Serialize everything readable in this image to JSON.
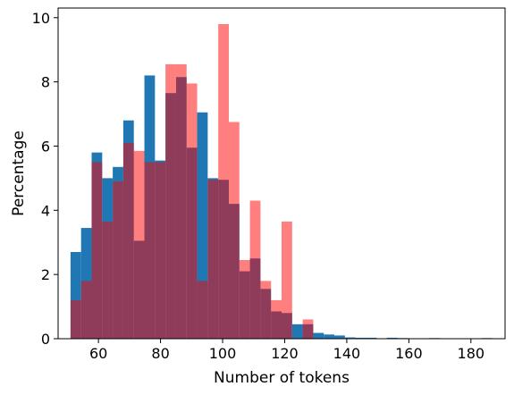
{
  "chart_data": {
    "type": "bar",
    "xlabel": "Number of tokens",
    "ylabel": "Percentage",
    "xlim": [
      47,
      191
    ],
    "ylim": [
      0,
      10.3
    ],
    "xticks": [
      60,
      80,
      100,
      120,
      140,
      160,
      180
    ],
    "yticks": [
      0,
      2,
      4,
      6,
      8,
      10
    ],
    "grid": false,
    "legend": "none",
    "overlap_color": "#8b3356",
    "series": [
      {
        "color": "#1f77b4",
        "alpha": 1.0,
        "bins": [
          {
            "x0": 51.0,
            "x1": 54.4,
            "value": 2.7
          },
          {
            "x0": 54.4,
            "x1": 57.8,
            "value": 3.45
          },
          {
            "x0": 57.8,
            "x1": 61.2,
            "value": 5.8
          },
          {
            "x0": 61.2,
            "x1": 64.6,
            "value": 5.0
          },
          {
            "x0": 64.6,
            "x1": 68.0,
            "value": 5.35
          },
          {
            "x0": 68.0,
            "x1": 71.4,
            "value": 6.8
          },
          {
            "x0": 71.4,
            "x1": 74.8,
            "value": 3.05
          },
          {
            "x0": 74.8,
            "x1": 78.2,
            "value": 8.2
          },
          {
            "x0": 78.2,
            "x1": 81.6,
            "value": 5.55
          },
          {
            "x0": 81.6,
            "x1": 85.0,
            "value": 7.65
          },
          {
            "x0": 85.0,
            "x1": 88.4,
            "value": 8.15
          },
          {
            "x0": 88.4,
            "x1": 91.8,
            "value": 5.95
          },
          {
            "x0": 91.8,
            "x1": 95.2,
            "value": 7.05
          },
          {
            "x0": 95.2,
            "x1": 98.6,
            "value": 5.0
          },
          {
            "x0": 98.6,
            "x1": 102.0,
            "value": 4.95
          },
          {
            "x0": 102.0,
            "x1": 105.4,
            "value": 4.2
          },
          {
            "x0": 105.4,
            "x1": 108.8,
            "value": 2.1
          },
          {
            "x0": 108.8,
            "x1": 112.2,
            "value": 2.5
          },
          {
            "x0": 112.2,
            "x1": 115.6,
            "value": 1.55
          },
          {
            "x0": 115.6,
            "x1": 119.0,
            "value": 0.85
          },
          {
            "x0": 119.0,
            "x1": 122.4,
            "value": 0.8
          },
          {
            "x0": 122.4,
            "x1": 125.8,
            "value": 0.45
          },
          {
            "x0": 125.8,
            "x1": 129.2,
            "value": 0.45
          },
          {
            "x0": 129.2,
            "x1": 132.6,
            "value": 0.18
          },
          {
            "x0": 132.6,
            "x1": 136.0,
            "value": 0.13
          },
          {
            "x0": 136.0,
            "x1": 139.4,
            "value": 0.1
          },
          {
            "x0": 139.4,
            "x1": 142.8,
            "value": 0.04
          },
          {
            "x0": 142.8,
            "x1": 146.2,
            "value": 0.03
          },
          {
            "x0": 146.2,
            "x1": 149.6,
            "value": 0.03
          },
          {
            "x0": 152.9,
            "x1": 156.3,
            "value": 0.03
          },
          {
            "x0": 156.3,
            "x1": 159.7,
            "value": 0.02
          },
          {
            "x0": 166.5,
            "x1": 169.9,
            "value": 0.02
          },
          {
            "x0": 183.5,
            "x1": 186.9,
            "value": 0.02
          }
        ]
      },
      {
        "color": "#ff0000",
        "alpha": 0.5,
        "bins": [
          {
            "x0": 51.0,
            "x1": 54.4,
            "value": 1.2
          },
          {
            "x0": 54.4,
            "x1": 57.8,
            "value": 1.8
          },
          {
            "x0": 57.8,
            "x1": 61.2,
            "value": 5.5
          },
          {
            "x0": 61.2,
            "x1": 64.6,
            "value": 3.65
          },
          {
            "x0": 64.6,
            "x1": 68.0,
            "value": 4.9
          },
          {
            "x0": 68.0,
            "x1": 71.4,
            "value": 6.1
          },
          {
            "x0": 71.4,
            "x1": 74.8,
            "value": 5.85
          },
          {
            "x0": 74.8,
            "x1": 78.2,
            "value": 5.5
          },
          {
            "x0": 78.2,
            "x1": 81.6,
            "value": 5.5
          },
          {
            "x0": 81.6,
            "x1": 85.0,
            "value": 8.55
          },
          {
            "x0": 85.0,
            "x1": 88.4,
            "value": 8.55
          },
          {
            "x0": 88.4,
            "x1": 91.8,
            "value": 7.95
          },
          {
            "x0": 91.8,
            "x1": 95.2,
            "value": 1.8
          },
          {
            "x0": 95.2,
            "x1": 98.6,
            "value": 4.95
          },
          {
            "x0": 98.6,
            "x1": 102.0,
            "value": 9.8
          },
          {
            "x0": 102.0,
            "x1": 105.4,
            "value": 6.75
          },
          {
            "x0": 105.4,
            "x1": 108.8,
            "value": 2.45
          },
          {
            "x0": 108.8,
            "x1": 112.2,
            "value": 4.3
          },
          {
            "x0": 112.2,
            "x1": 115.6,
            "value": 1.8
          },
          {
            "x0": 115.6,
            "x1": 119.0,
            "value": 1.2
          },
          {
            "x0": 119.0,
            "x1": 122.4,
            "value": 3.65
          },
          {
            "x0": 122.4,
            "x1": 125.8,
            "value": 0.0
          },
          {
            "x0": 125.8,
            "x1": 129.2,
            "value": 0.6
          }
        ]
      }
    ]
  }
}
